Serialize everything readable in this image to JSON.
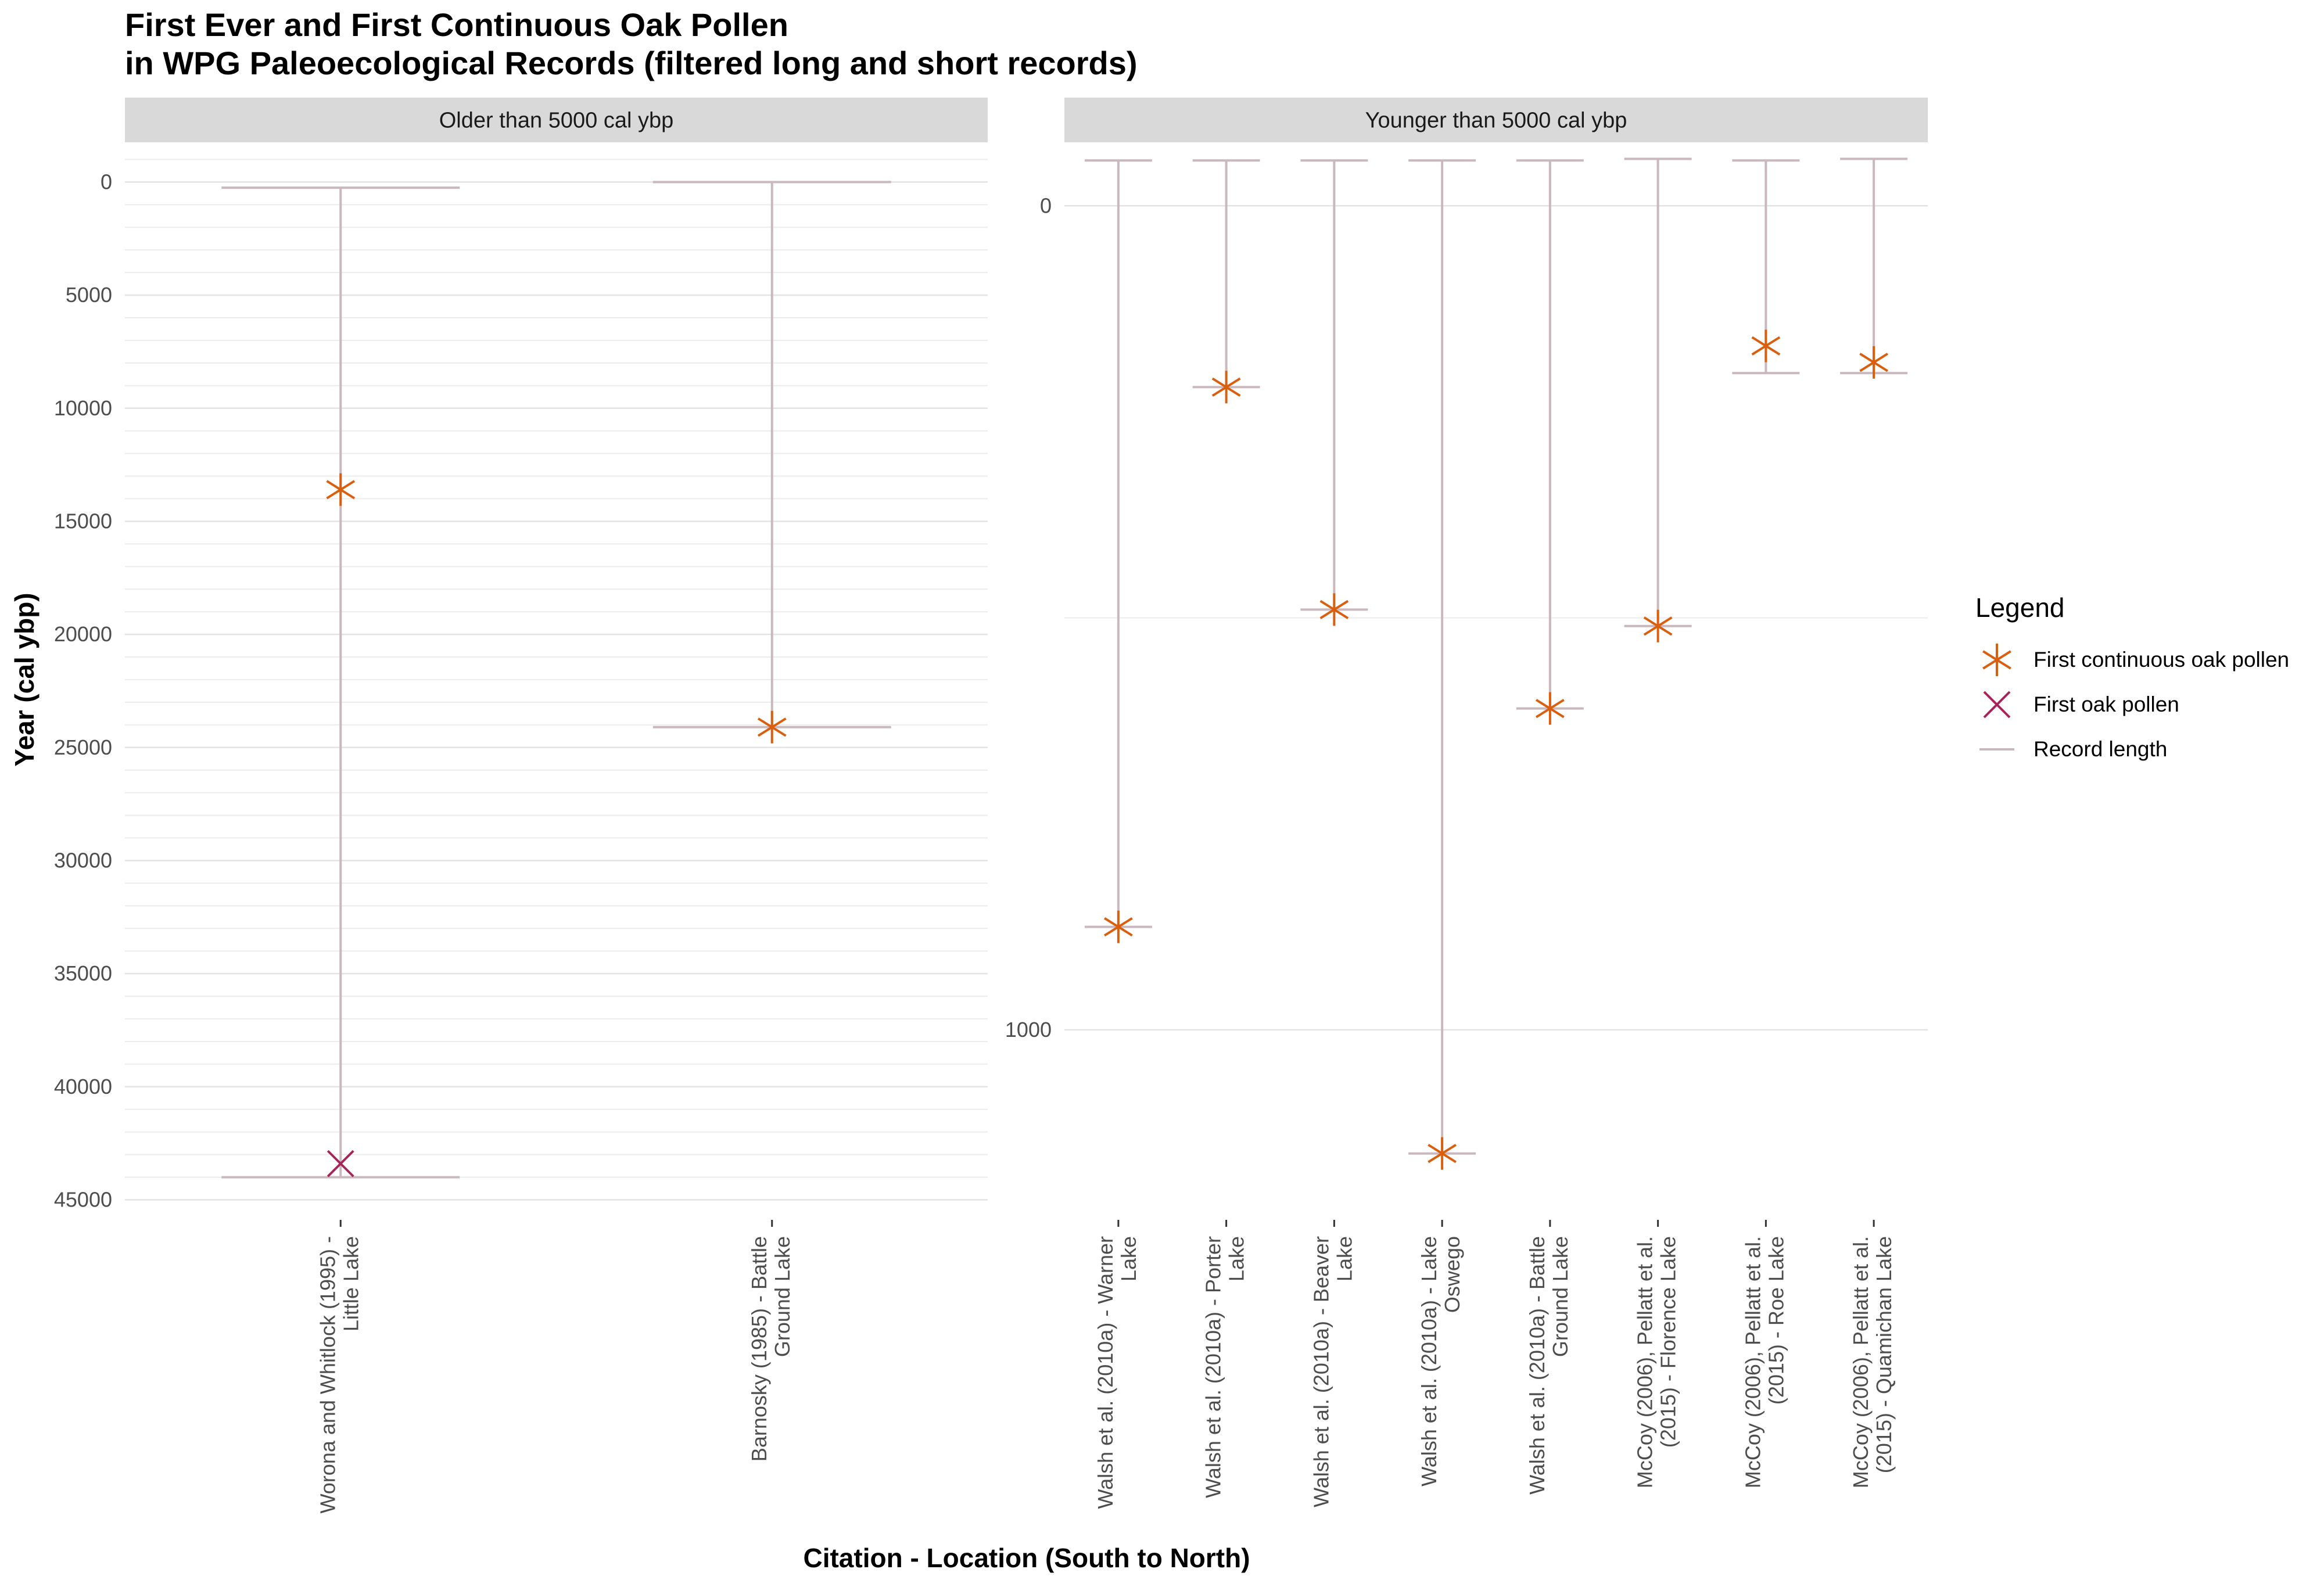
{
  "chart_data": {
    "type": "scatter",
    "title_lines": [
      "First Ever and First Continuous Oak Pollen",
      "in WPG Paleoecological Records (filtered long and short records)"
    ],
    "xlabel": "Citation - Location (South to North)",
    "ylabel": "Year (cal ybp)",
    "y_reversed": true,
    "grid": true,
    "legend_position": "right",
    "legend": {
      "title": "Legend",
      "entries": [
        {
          "key": "continuous",
          "label": "First continuous oak pollen",
          "symbol": "asterisk",
          "color": "#d95f0e"
        },
        {
          "key": "first",
          "label": "First oak pollen",
          "symbol": "cross",
          "color": "#a8235a"
        },
        {
          "key": "record",
          "label": "Record length",
          "symbol": "line",
          "color": "#c9b9be"
        }
      ]
    },
    "facets": [
      {
        "label": "Older than 5000 cal ybp",
        "ylim": [
          -1500,
          45500
        ],
        "yticks": [
          0,
          5000,
          10000,
          15000,
          20000,
          25000,
          30000,
          35000,
          40000,
          45000
        ],
        "ytick_labels": [
          "0",
          "5000",
          "10000",
          "15000",
          "20000",
          "25000",
          "30000",
          "35000",
          "40000",
          "45000"
        ],
        "records": [
          {
            "label_lines": [
              "Worona and Whitlock (1995) -",
              "Little Lake"
            ],
            "start": 250,
            "end": 44000,
            "first_continuous": 13600,
            "first_oak": 43400
          },
          {
            "label_lines": [
              "Barnosky (1985) - Battle",
              "Ground Lake"
            ],
            "start": 0,
            "end": 24100,
            "first_continuous": 24100,
            "first_oak": null
          }
        ]
      },
      {
        "label": "Younger than 5000 cal ybp",
        "ylim": [
          -70,
          1220
        ],
        "yticks": [
          0,
          1000
        ],
        "ytick_labels": [
          "0",
          "1000"
        ],
        "records": [
          {
            "label_lines": [
              "Walsh et al. (2010a) - Warner",
              "Lake"
            ],
            "start": -55,
            "end": 875,
            "first_continuous": 875,
            "first_oak": null
          },
          {
            "label_lines": [
              "Walsh et al. (2010a) - Porter",
              "Lake"
            ],
            "start": -55,
            "end": 220,
            "first_continuous": 220,
            "first_oak": null
          },
          {
            "label_lines": [
              "Walsh et al. (2010a) - Beaver",
              "Lake"
            ],
            "start": -55,
            "end": 490,
            "first_continuous": 490,
            "first_oak": null
          },
          {
            "label_lines": [
              "Walsh et al. (2010a) - Lake",
              "Oswego"
            ],
            "start": -55,
            "end": 1150,
            "first_continuous": 1150,
            "first_oak": null
          },
          {
            "label_lines": [
              "Walsh et al. (2010a) - Battle",
              "Ground Lake"
            ],
            "start": -55,
            "end": 610,
            "first_continuous": 610,
            "first_oak": null
          },
          {
            "label_lines": [
              "McCoy (2006), Pellatt et al.",
              "(2015) - Florence Lake"
            ],
            "start": -57,
            "end": 510,
            "first_continuous": 510,
            "first_oak": null
          },
          {
            "label_lines": [
              "McCoy (2006), Pellatt et al.",
              "(2015) - Roe Lake"
            ],
            "start": -55,
            "end": 203,
            "first_continuous": 170,
            "first_oak": null
          },
          {
            "label_lines": [
              "McCoy (2006), Pellatt et al.",
              "(2015) - Quamichan Lake"
            ],
            "start": -57,
            "end": 203,
            "first_continuous": 190,
            "first_oak": null
          }
        ]
      }
    ]
  }
}
